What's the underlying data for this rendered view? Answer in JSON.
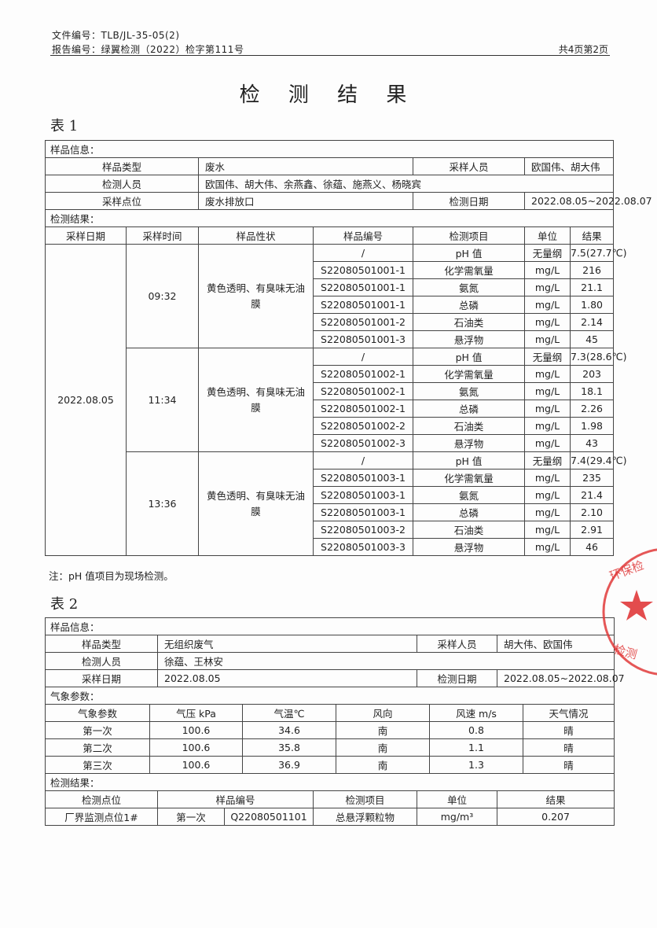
{
  "header": {
    "file_no": "文件编号：TLB/JL-35-05(2)",
    "report_no": "报告编号：绿翼检测（2022）检字第111号",
    "page_info": "共4页第2页"
  },
  "title": "检 测 结 果",
  "table1": {
    "name": "表 1",
    "sample_info_label": "样品信息：",
    "info": [
      {
        "k1": "样品类型",
        "v1": "废水",
        "k2": "采样人员",
        "v2": "欧国伟、胡大伟"
      },
      {
        "k1": "检测人员",
        "v1": "欧国伟、胡大伟、余燕鑫、徐蕴、施燕义、杨晓宾"
      },
      {
        "k1": "采样点位",
        "v1": "废水排放口",
        "k2": "检测日期",
        "v2": "2022.08.05~2022.08.07"
      }
    ],
    "results_label": "检测结果：",
    "columns": [
      "采样日期",
      "采样时间",
      "样品性状",
      "样品编号",
      "检测项目",
      "单位",
      "结果"
    ],
    "date": "2022.08.05",
    "groups": [
      {
        "time": "09:32",
        "appearance": "黄色透明、有臭味无油膜",
        "rows": [
          [
            "/",
            "pH 值",
            "无量纲",
            "7.5(27.7℃)"
          ],
          [
            "S22080501001-1",
            "化学需氧量",
            "mg/L",
            "216"
          ],
          [
            "S22080501001-1",
            "氨氮",
            "mg/L",
            "21.1"
          ],
          [
            "S22080501001-1",
            "总磷",
            "mg/L",
            "1.80"
          ],
          [
            "S22080501001-2",
            "石油类",
            "mg/L",
            "2.14"
          ],
          [
            "S22080501001-3",
            "悬浮物",
            "mg/L",
            "45"
          ]
        ]
      },
      {
        "time": "11:34",
        "appearance": "黄色透明、有臭味无油膜",
        "rows": [
          [
            "/",
            "pH 值",
            "无量纲",
            "7.3(28.6℃)"
          ],
          [
            "S22080501002-1",
            "化学需氧量",
            "mg/L",
            "203"
          ],
          [
            "S22080501002-1",
            "氨氮",
            "mg/L",
            "18.1"
          ],
          [
            "S22080501002-1",
            "总磷",
            "mg/L",
            "2.26"
          ],
          [
            "S22080501002-2",
            "石油类",
            "mg/L",
            "1.98"
          ],
          [
            "S22080501002-3",
            "悬浮物",
            "mg/L",
            "43"
          ]
        ]
      },
      {
        "time": "13:36",
        "appearance": "黄色透明、有臭味无油膜",
        "rows": [
          [
            "/",
            "pH 值",
            "无量纲",
            "7.4(29.4℃)"
          ],
          [
            "S22080501003-1",
            "化学需氧量",
            "mg/L",
            "235"
          ],
          [
            "S22080501003-1",
            "氨氮",
            "mg/L",
            "21.4"
          ],
          [
            "S22080501003-1",
            "总磷",
            "mg/L",
            "2.10"
          ],
          [
            "S22080501003-2",
            "石油类",
            "mg/L",
            "2.91"
          ],
          [
            "S22080501003-3",
            "悬浮物",
            "mg/L",
            "46"
          ]
        ]
      }
    ],
    "note": "注：pH 值项目为现场检测。"
  },
  "table2": {
    "name": "表 2",
    "sample_info_label": "样品信息：",
    "info": [
      {
        "k1": "样品类型",
        "v1": "无组织废气",
        "k2": "采样人员",
        "v2": "胡大伟、欧国伟"
      },
      {
        "k1": "检测人员",
        "v1": "徐蕴、王林安"
      },
      {
        "k1": "采样日期",
        "v1": "2022.08.05",
        "k2": "检测日期",
        "v2": "2022.08.05~2022.08.07"
      }
    ],
    "weather_label": "气象参数：",
    "weather_columns": [
      "气象参数",
      "气压 kPa",
      "气温℃",
      "风向",
      "风速 m/s",
      "天气情况"
    ],
    "weather_rows": [
      [
        "第一次",
        "100.6",
        "34.6",
        "南",
        "0.8",
        "晴"
      ],
      [
        "第二次",
        "100.6",
        "35.8",
        "南",
        "1.1",
        "晴"
      ],
      [
        "第三次",
        "100.6",
        "36.9",
        "南",
        "1.3",
        "晴"
      ]
    ],
    "results_label": "检测结果：",
    "result_columns": [
      "检测点位",
      "样品编号",
      "检测项目",
      "单位",
      "结果"
    ],
    "result_rows": [
      [
        "厂界监测点位1#",
        "第一次",
        "Q22080501101",
        "总悬浮颗粒物",
        "mg/m³",
        "0.207"
      ]
    ]
  },
  "stamp": {
    "text": "环保检测",
    "color": "#e0393a"
  }
}
